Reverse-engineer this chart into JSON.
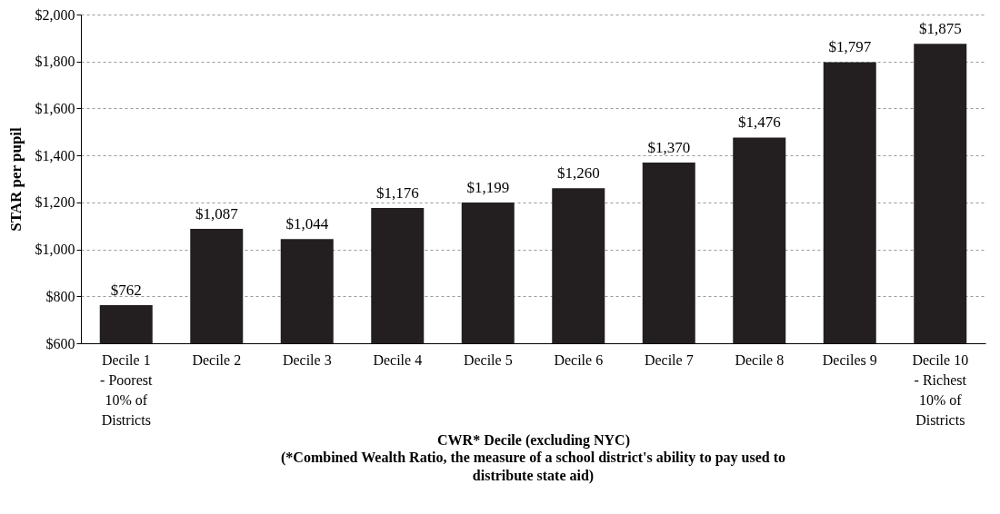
{
  "chart_data": {
    "type": "bar",
    "categories": [
      "Decile 1\n- Poorest\n10% of\nDistricts",
      "Decile 2",
      "Decile 3",
      "Decile 4",
      "Decile 5",
      "Decile 6",
      "Decile 7",
      "Decile 8",
      "Deciles 9",
      "Decile 10\n- Richest\n10% of\nDistricts"
    ],
    "values": [
      762,
      1087,
      1044,
      1176,
      1199,
      1260,
      1370,
      1476,
      1797,
      1875
    ],
    "color": "#231f20",
    "value_labels": [
      "$762",
      "$1,087",
      "$1,044",
      "$1,176",
      "$1,199",
      "$1,260",
      "$1,370",
      "$1,476",
      "$1,797",
      "$1,875"
    ],
    "ylim": [
      600,
      2000
    ],
    "yticks": [
      {
        "value": 600,
        "label": "$600"
      },
      {
        "value": 800,
        "label": "$800"
      },
      {
        "value": 1000,
        "label": "$1,000"
      },
      {
        "value": 1200,
        "label": "$1,200"
      },
      {
        "value": 1400,
        "label": "$1,400"
      },
      {
        "value": 1600,
        "label": "$1,600"
      },
      {
        "value": 1800,
        "label": "$1,800"
      },
      {
        "value": 2000,
        "label": "$2,000"
      }
    ],
    "ylabel": "STAR per pupil",
    "xlabel": "CWR* Decile (excluding NYC)",
    "annotations": [
      "(*Combined Wealth Ratio, the measure of a school district's ability to pay used to distribute state aid)"
    ],
    "grid": "y"
  }
}
